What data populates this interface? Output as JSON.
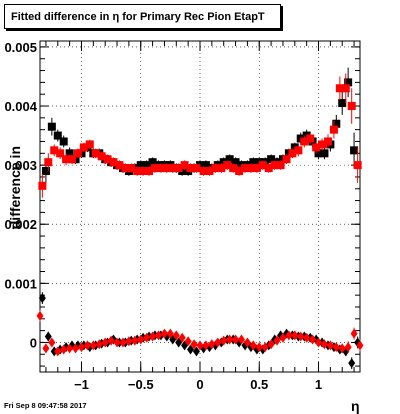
{
  "canvas": {
    "title": "Fitted difference in  η for Primary Rec Pion EtapT",
    "timestamp": "Fri Sep  8 09:47:58 2017"
  },
  "chart_data": {
    "type": "scatter",
    "title": "Fitted difference in  η for Primary Rec Pion EtapT",
    "xlabel": "η",
    "ylabel": "difference in",
    "xlim": [
      -1.35,
      1.35
    ],
    "ylim": [
      -0.0005,
      0.0051
    ],
    "grid": true,
    "x_ticks": [
      -1,
      -0.5,
      0,
      0.5,
      1
    ],
    "x_tick_labels": [
      "−1",
      "−0.5",
      "0",
      "0.5",
      "1"
    ],
    "y_ticks": [
      0,
      0.001,
      0.002,
      0.003,
      0.004,
      0.005
    ],
    "y_tick_labels": [
      "0",
      "0.001",
      "0.002",
      "0.003",
      "0.004",
      "0.005"
    ],
    "series": [
      {
        "color": "#000000",
        "marker": "square",
        "x": [
          -1.3,
          -1.25,
          -1.2,
          -1.15,
          -1.1,
          -1.05,
          -1.0,
          -0.95,
          -0.9,
          -0.85,
          -0.8,
          -0.75,
          -0.7,
          -0.65,
          -0.6,
          -0.55,
          -0.5,
          -0.45,
          -0.4,
          -0.35,
          -0.3,
          -0.25,
          -0.2,
          -0.15,
          -0.1,
          -0.05,
          0.0,
          0.05,
          0.1,
          0.15,
          0.2,
          0.25,
          0.3,
          0.35,
          0.4,
          0.45,
          0.5,
          0.55,
          0.6,
          0.65,
          0.7,
          0.75,
          0.8,
          0.85,
          0.9,
          0.95,
          1.0,
          1.05,
          1.1,
          1.15,
          1.2,
          1.25,
          1.3
        ],
        "y": [
          0.0029,
          0.00365,
          0.0035,
          0.0034,
          0.0032,
          0.0031,
          0.0032,
          0.0033,
          0.0032,
          0.0032,
          0.0031,
          0.00305,
          0.003,
          0.00295,
          0.0029,
          0.00295,
          0.003,
          0.003,
          0.00305,
          0.003,
          0.003,
          0.003,
          0.00295,
          0.0029,
          0.0029,
          0.00295,
          0.003,
          0.003,
          0.00295,
          0.003,
          0.00305,
          0.0031,
          0.00305,
          0.003,
          0.003,
          0.00305,
          0.00305,
          0.00305,
          0.0031,
          0.00305,
          0.0031,
          0.0032,
          0.0033,
          0.00345,
          0.0035,
          0.0034,
          0.0032,
          0.0032,
          0.00335,
          0.0037,
          0.00405,
          0.0044,
          0.00325
        ],
        "err": [
          0.0002,
          0.00015,
          0.0001,
          0.0001,
          0.0001,
          8e-05,
          8e-05,
          8e-05,
          8e-05,
          8e-05,
          8e-05,
          8e-05,
          8e-05,
          8e-05,
          8e-05,
          8e-05,
          8e-05,
          8e-05,
          8e-05,
          8e-05,
          8e-05,
          8e-05,
          8e-05,
          8e-05,
          8e-05,
          8e-05,
          8e-05,
          8e-05,
          8e-05,
          8e-05,
          8e-05,
          8e-05,
          8e-05,
          8e-05,
          8e-05,
          8e-05,
          8e-05,
          8e-05,
          8e-05,
          8e-05,
          8e-05,
          8e-05,
          8e-05,
          0.0001,
          0.0001,
          0.0001,
          0.0001,
          0.0001,
          0.00012,
          0.00015,
          0.0002,
          0.00025,
          0.0003
        ]
      },
      {
        "color": "#ff0000",
        "marker": "square",
        "x": [
          -1.33,
          -1.28,
          -1.23,
          -1.18,
          -1.13,
          -1.08,
          -1.03,
          -0.98,
          -0.93,
          -0.88,
          -0.83,
          -0.78,
          -0.73,
          -0.68,
          -0.63,
          -0.58,
          -0.53,
          -0.48,
          -0.43,
          -0.38,
          -0.33,
          -0.28,
          -0.23,
          -0.18,
          -0.13,
          -0.08,
          -0.03,
          0.03,
          0.08,
          0.13,
          0.18,
          0.23,
          0.28,
          0.33,
          0.38,
          0.43,
          0.48,
          0.53,
          0.58,
          0.63,
          0.68,
          0.73,
          0.78,
          0.83,
          0.88,
          0.93,
          0.98,
          1.03,
          1.08,
          1.13,
          1.18,
          1.23,
          1.28,
          1.33
        ],
        "y": [
          0.00265,
          0.00305,
          0.00325,
          0.0032,
          0.0031,
          0.0031,
          0.0032,
          0.0033,
          0.00335,
          0.0032,
          0.00315,
          0.0031,
          0.00305,
          0.003,
          0.00295,
          0.00295,
          0.0029,
          0.0029,
          0.0029,
          0.00295,
          0.00295,
          0.00295,
          0.00295,
          0.00295,
          0.003,
          0.00295,
          0.00295,
          0.0029,
          0.0029,
          0.00295,
          0.00295,
          0.003,
          0.00295,
          0.0029,
          0.00295,
          0.00295,
          0.00295,
          0.003,
          0.00295,
          0.003,
          0.003,
          0.0031,
          0.0032,
          0.00325,
          0.0034,
          0.00345,
          0.0033,
          0.00335,
          0.0034,
          0.0036,
          0.0043,
          0.0043,
          0.004,
          0.003
        ],
        "err": [
          0.0002,
          0.00015,
          0.0001,
          0.0001,
          0.0001,
          8e-05,
          8e-05,
          8e-05,
          8e-05,
          8e-05,
          8e-05,
          8e-05,
          8e-05,
          8e-05,
          8e-05,
          8e-05,
          8e-05,
          8e-05,
          8e-05,
          8e-05,
          8e-05,
          8e-05,
          8e-05,
          8e-05,
          8e-05,
          8e-05,
          8e-05,
          8e-05,
          8e-05,
          8e-05,
          8e-05,
          8e-05,
          8e-05,
          8e-05,
          8e-05,
          8e-05,
          8e-05,
          8e-05,
          8e-05,
          8e-05,
          8e-05,
          8e-05,
          8e-05,
          0.0001,
          0.0001,
          0.0001,
          0.0001,
          0.0001,
          0.00012,
          0.00015,
          0.0002,
          0.00025,
          0.0003,
          0.0003
        ]
      },
      {
        "color": "#000000",
        "marker": "diamond",
        "x": [
          -1.33,
          -1.28,
          -1.23,
          -1.18,
          -1.13,
          -1.08,
          -1.03,
          -0.98,
          -0.93,
          -0.88,
          -0.83,
          -0.78,
          -0.73,
          -0.68,
          -0.63,
          -0.58,
          -0.53,
          -0.48,
          -0.43,
          -0.38,
          -0.33,
          -0.28,
          -0.23,
          -0.18,
          -0.13,
          -0.08,
          -0.03,
          0.03,
          0.08,
          0.13,
          0.18,
          0.23,
          0.28,
          0.33,
          0.38,
          0.43,
          0.48,
          0.53,
          0.58,
          0.63,
          0.68,
          0.73,
          0.78,
          0.83,
          0.88,
          0.93,
          0.98,
          1.03,
          1.08,
          1.13,
          1.18,
          1.23,
          1.28,
          1.33
        ],
        "y": [
          0.00075,
          0.0001,
          -0.00015,
          -0.00012,
          -8e-05,
          -5e-05,
          -5e-05,
          -5e-05,
          -8e-05,
          -5e-05,
          -2e-05,
          0.0,
          5e-05,
          0.0,
          0.0,
          3e-05,
          5e-05,
          8e-05,
          0.0001,
          0.00012,
          0.00012,
          0.0001,
          5e-05,
          0.0,
          -5e-05,
          -0.00012,
          -0.00015,
          -0.0001,
          -8e-05,
          -5e-05,
          0.0,
          5e-05,
          5e-05,
          0.0,
          -5e-05,
          -8e-05,
          -0.00012,
          -0.00012,
          -5e-05,
          5e-05,
          0.00012,
          0.00015,
          0.00012,
          0.0001,
          0.0001,
          8e-05,
          5e-05,
          0.0,
          -5e-05,
          -8e-05,
          -0.00012,
          -0.00015,
          -0.00035,
          0.0
        ],
        "err": [
          0.0001,
          8e-05,
          5e-05,
          5e-05,
          4e-05,
          4e-05,
          4e-05,
          4e-05,
          4e-05,
          4e-05,
          4e-05,
          4e-05,
          4e-05,
          4e-05,
          4e-05,
          4e-05,
          4e-05,
          4e-05,
          4e-05,
          4e-05,
          4e-05,
          4e-05,
          4e-05,
          4e-05,
          4e-05,
          4e-05,
          4e-05,
          4e-05,
          4e-05,
          4e-05,
          4e-05,
          4e-05,
          4e-05,
          4e-05,
          4e-05,
          4e-05,
          4e-05,
          4e-05,
          4e-05,
          4e-05,
          4e-05,
          4e-05,
          4e-05,
          4e-05,
          4e-05,
          4e-05,
          4e-05,
          4e-05,
          5e-05,
          5e-05,
          6e-05,
          8e-05,
          0.0001,
          0.0001
        ]
      },
      {
        "color": "#ff0000",
        "marker": "diamond",
        "x": [
          -1.35,
          -1.3,
          -1.25,
          -1.2,
          -1.15,
          -1.1,
          -1.05,
          -1.0,
          -0.95,
          -0.9,
          -0.85,
          -0.8,
          -0.75,
          -0.7,
          -0.65,
          -0.6,
          -0.55,
          -0.5,
          -0.45,
          -0.4,
          -0.35,
          -0.3,
          -0.25,
          -0.2,
          -0.15,
          -0.1,
          -0.05,
          0.0,
          0.05,
          0.1,
          0.15,
          0.2,
          0.25,
          0.3,
          0.35,
          0.4,
          0.45,
          0.5,
          0.55,
          0.6,
          0.65,
          0.7,
          0.75,
          0.8,
          0.85,
          0.9,
          0.95,
          1.0,
          1.05,
          1.1,
          1.15,
          1.2,
          1.25,
          1.3,
          1.35
        ],
        "y": [
          0.00045,
          -0.0001,
          0.0,
          -0.00015,
          -0.00012,
          -0.0001,
          -0.0001,
          -8e-05,
          -5e-05,
          -5e-05,
          -3e-05,
          0.0,
          3e-05,
          0.0,
          0.0,
          2e-05,
          3e-05,
          5e-05,
          8e-05,
          0.0001,
          0.00012,
          0.00015,
          0.00015,
          0.00012,
          8e-05,
          2e-05,
          -3e-05,
          -5e-05,
          -5e-05,
          -3e-05,
          0.0,
          3e-05,
          5e-05,
          5e-05,
          5e-05,
          0.0,
          -5e-05,
          -8e-05,
          -8e-05,
          -3e-05,
          3e-05,
          8e-05,
          0.00012,
          0.00012,
          0.0001,
          8e-05,
          5e-05,
          0.0,
          -3e-05,
          -5e-05,
          -8e-05,
          -0.0001,
          -8e-05,
          0.00015,
          -5e-05
        ],
        "err": [
          0.0001,
          8e-05,
          5e-05,
          5e-05,
          4e-05,
          4e-05,
          4e-05,
          4e-05,
          4e-05,
          4e-05,
          4e-05,
          4e-05,
          4e-05,
          4e-05,
          4e-05,
          4e-05,
          4e-05,
          4e-05,
          4e-05,
          4e-05,
          4e-05,
          4e-05,
          4e-05,
          4e-05,
          4e-05,
          4e-05,
          4e-05,
          4e-05,
          4e-05,
          4e-05,
          4e-05,
          4e-05,
          4e-05,
          4e-05,
          4e-05,
          4e-05,
          4e-05,
          4e-05,
          4e-05,
          4e-05,
          4e-05,
          4e-05,
          4e-05,
          4e-05,
          4e-05,
          4e-05,
          4e-05,
          4e-05,
          5e-05,
          5e-05,
          6e-05,
          8e-05,
          0.0001,
          0.0001,
          0.0001
        ]
      }
    ]
  }
}
